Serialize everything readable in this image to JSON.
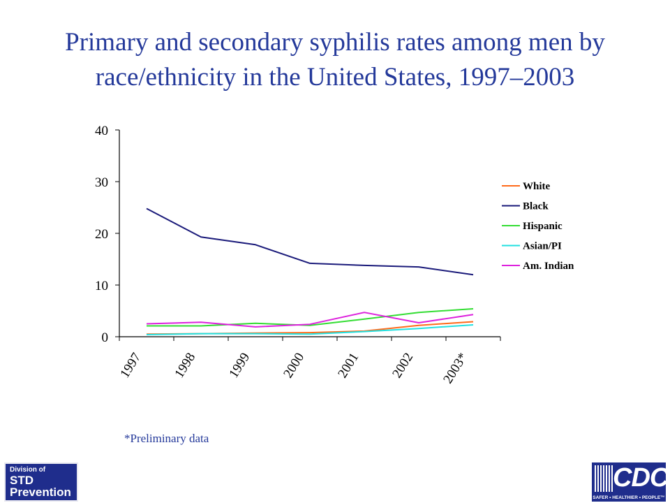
{
  "header": {
    "title_line1": "Primary and secondary syphilis rates among men by",
    "title_line2": "race/ethnicity in the United States, 1997–2003"
  },
  "footnote": "*Preliminary data",
  "logos": {
    "std": {
      "line1": "Division of",
      "line2": "STD",
      "line3": "Prevention"
    },
    "cdc": {
      "letters": "CDC",
      "tagline": "SAFER • HEALTHIER • PEOPLE™"
    }
  },
  "colors": {
    "title": "#24399a",
    "logo_blue": "#1f2d8c"
  },
  "chart_data": {
    "type": "line",
    "title": "",
    "xlabel": "",
    "ylabel": "",
    "categories": [
      "1997",
      "1998",
      "1999",
      "2000",
      "2001",
      "2002",
      "2003*"
    ],
    "ylim": [
      0,
      40
    ],
    "yticks": [
      0,
      10,
      20,
      30,
      40
    ],
    "grid": false,
    "legend_position": "right",
    "series": [
      {
        "name": "White",
        "color": "#ff6a1a",
        "values": [
          0.5,
          0.6,
          0.7,
          0.8,
          1.1,
          2.2,
          2.9
        ]
      },
      {
        "name": "Black",
        "color": "#1a1a7a",
        "values": [
          24.8,
          19.3,
          17.8,
          14.2,
          13.8,
          13.5,
          12.0
        ]
      },
      {
        "name": "Hispanic",
        "color": "#33dd33",
        "values": [
          2.1,
          2.1,
          2.6,
          2.2,
          3.4,
          4.7,
          5.4
        ]
      },
      {
        "name": "Asian/PI",
        "color": "#22e0e0",
        "values": [
          0.4,
          0.6,
          0.6,
          0.5,
          1.0,
          1.6,
          2.3
        ]
      },
      {
        "name": "Am. Indian",
        "color": "#dd22dd",
        "values": [
          2.5,
          2.8,
          1.9,
          2.4,
          4.7,
          2.7,
          4.3
        ]
      }
    ]
  }
}
